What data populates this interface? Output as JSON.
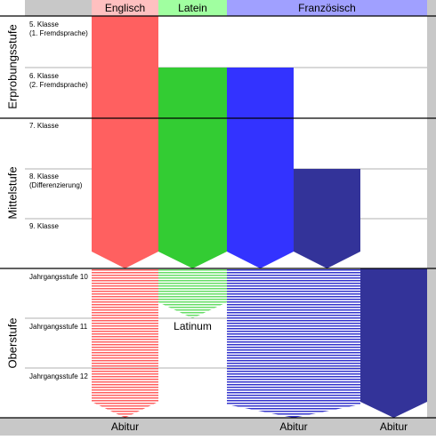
{
  "header": {
    "subjects": [
      "Englisch",
      "Latein",
      "Französisch"
    ]
  },
  "sections": [
    "Erprobungsstufe",
    "Mittelstufe",
    "Oberstufe"
  ],
  "rows": [
    [
      "5. Klasse",
      "(1. Fremdsprache)"
    ],
    [
      "6. Klasse",
      "(2. Fremdsprache)"
    ],
    [
      "7. Klasse"
    ],
    [
      "8. Klasse",
      "(Differenzierung)"
    ],
    [
      "9. Klasse"
    ],
    [
      "Jahrgangsstufe 10"
    ],
    [
      "Jahrgangsstufe 11"
    ],
    [
      "Jahrgangsstufe 12"
    ]
  ],
  "annotations": {
    "latinum": "Latinum",
    "abitur": [
      "Abitur",
      "Abitur",
      "Abitur"
    ]
  }
}
